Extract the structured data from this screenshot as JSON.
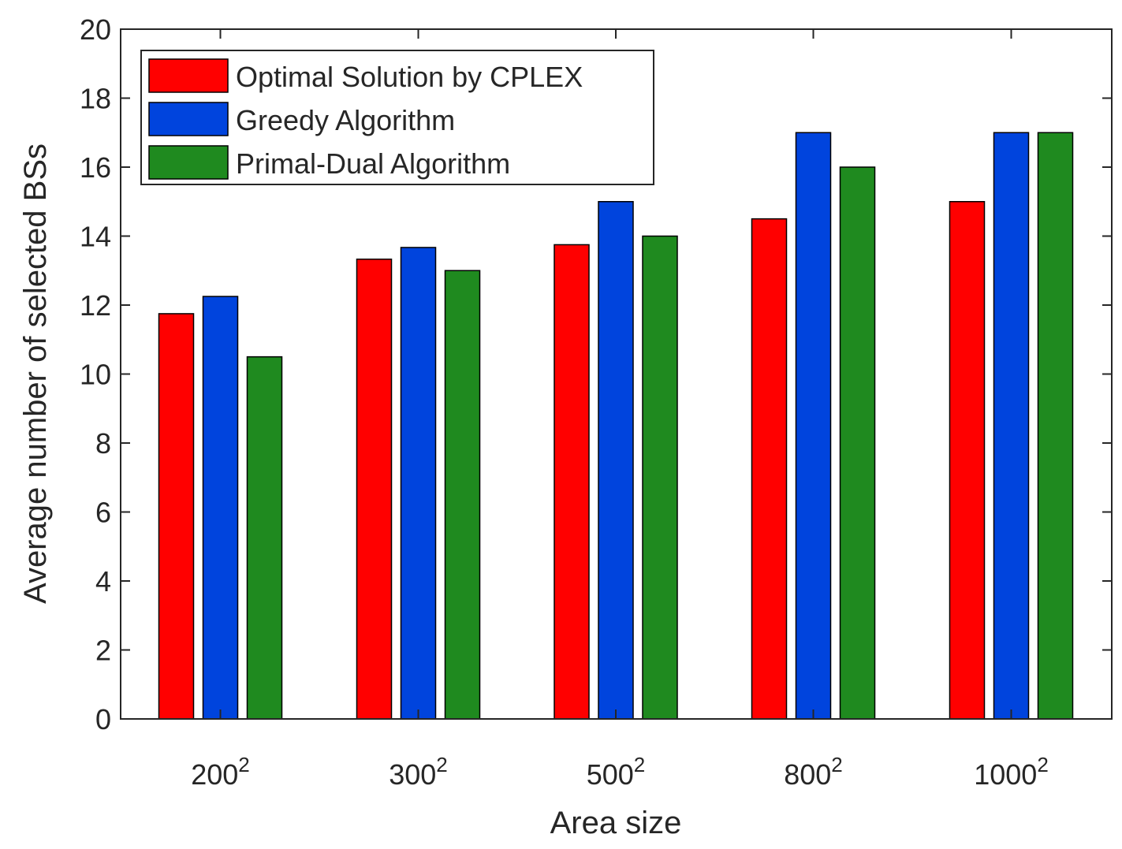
{
  "chart_data": {
    "type": "bar",
    "title": "",
    "xlabel": "Area size",
    "ylabel": "Average number of selected BSs",
    "ylim": [
      0,
      20
    ],
    "yticks": [
      0,
      2,
      4,
      6,
      8,
      10,
      12,
      14,
      16,
      18,
      20
    ],
    "categories": [
      {
        "base": "200",
        "exp": "2"
      },
      {
        "base": "300",
        "exp": "2"
      },
      {
        "base": "500",
        "exp": "2"
      },
      {
        "base": "800",
        "exp": "2"
      },
      {
        "base": "1000",
        "exp": "2"
      }
    ],
    "series": [
      {
        "name": "Optimal Solution by CPLEX",
        "color": "#ff0000",
        "values": [
          11.75,
          13.33,
          13.75,
          14.5,
          15.0
        ]
      },
      {
        "name": "Greedy Algorithm",
        "color": "#0044dd",
        "values": [
          12.25,
          13.67,
          15.0,
          17.0,
          17.0
        ]
      },
      {
        "name": "Primal-Dual Algorithm",
        "color": "#1f8a1f",
        "values": [
          10.5,
          13.0,
          14.0,
          16.0,
          17.0
        ]
      }
    ],
    "legend_position": "top-left",
    "grid": false
  }
}
